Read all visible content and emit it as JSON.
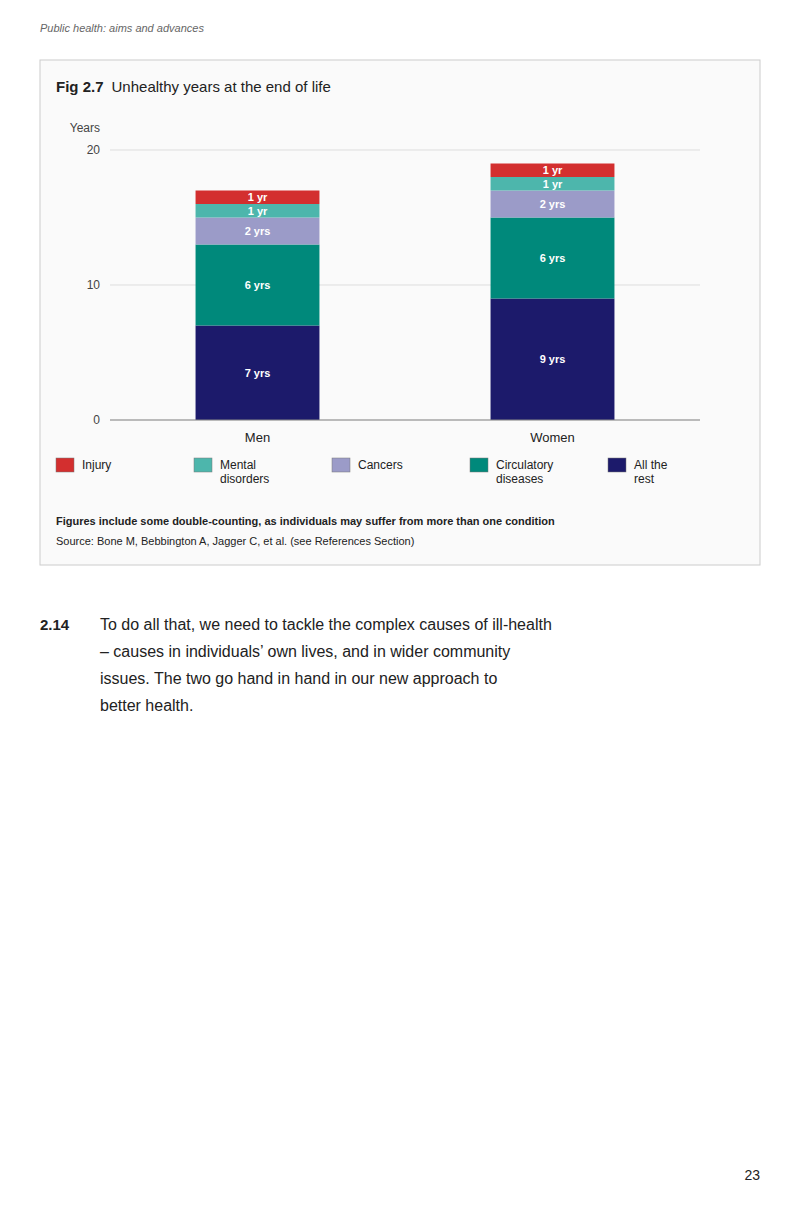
{
  "chart_data": {
    "type": "bar",
    "stacked": true,
    "title": "Fig 2.7",
    "subtitle": "Unhealthy years at the end of life",
    "y_label": "Years",
    "categories": [
      "Men",
      "Women"
    ],
    "series": [
      {
        "name": "All the\nrest",
        "color": "#1c1a6b",
        "values": [
          7,
          9
        ],
        "value_labels": [
          "7 yrs",
          "9 yrs"
        ]
      },
      {
        "name": "Circulatory\ndiseases",
        "color": "#00897b",
        "values": [
          6,
          6
        ],
        "value_labels": [
          "6 yrs",
          "6 yrs"
        ]
      },
      {
        "name": "Cancers",
        "color": "#9b9bc8",
        "values": [
          2,
          2
        ],
        "value_labels": [
          "2 yrs",
          "2 yrs"
        ]
      },
      {
        "name": "Mental\ndisorders",
        "color": "#4db6ac",
        "values": [
          1,
          1
        ],
        "value_labels": [
          "1 yr",
          "1 yr"
        ]
      },
      {
        "name": "Injury",
        "color": "#d32f2f",
        "values": [
          1,
          1
        ],
        "value_labels": [
          "1 yr",
          "1 yr"
        ]
      }
    ],
    "ylim": [
      0,
      20
    ],
    "yticks": [
      0,
      10,
      20
    ],
    "grid": true,
    "data_labels": true,
    "annotations": [
      "Figures include some double-counting, as individuals may suffer from more than one condition",
      "Source: Bone M, Bebbington A, Jagger C, et al. (see References Section)"
    ]
  },
  "page": {
    "header": "Public health: aims and advances",
    "paragraph_number": "2.14",
    "paragraph": "To do all that, we need to tackle the complex causes of ill-health\n– causes in individuals’ own lives, and in wider community\nissues. The two go hand in hand in our new approach to\nbetter health.",
    "page_number": "23"
  }
}
